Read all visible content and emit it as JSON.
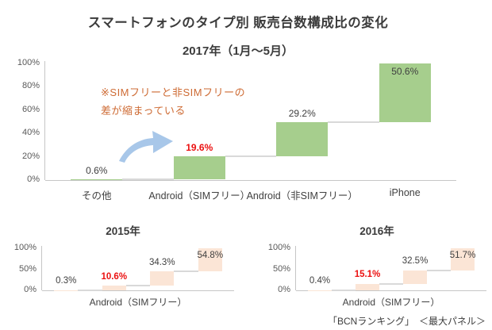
{
  "page": {
    "title": "スマートフォンのタイプ別 販売台数構成比の変化",
    "footer": "「BCNランキング」　＜最大パネル＞"
  },
  "annotation": {
    "line1": "※SIMフリーと非SIMフリーの",
    "line2": "差が縮まっている",
    "text_color": "#CE6B34",
    "arrow_color": "#A8C7E9"
  },
  "colors": {
    "bar_green": "#A6CE8D",
    "bar_peach": "#FBE5D6",
    "label_dark": "#404040",
    "label_red": "#EB1010",
    "axis_line": "#C6C6C6",
    "connector": "#D9D9D9",
    "tick_text": "#595959"
  },
  "chart_data": [
    {
      "id": "2017",
      "type": "bar",
      "subtype": "waterfall",
      "title": "2017年（1月〜5月）",
      "categories": [
        "その他",
        "Android（SIMフリー）",
        "Android（非SIMフリー）",
        "iPhone"
      ],
      "show_categories": true,
      "values": [
        0.6,
        19.6,
        29.2,
        50.6
      ],
      "bases": [
        0,
        0.6,
        20.2,
        49.4
      ],
      "data_labels": [
        "0.6%",
        "19.6%",
        "29.2%",
        "50.6%"
      ],
      "label_styles": [
        "above",
        "above-red",
        "above",
        "inside"
      ],
      "bar_color_key": "bar_green",
      "ylim": [
        0,
        100
      ],
      "yticks": [
        0,
        20,
        40,
        60,
        80,
        100
      ],
      "ytick_labels": [
        "0%",
        "20%",
        "40%",
        "60%",
        "80%",
        "100%"
      ],
      "grid": false,
      "legend": false
    },
    {
      "id": "2015",
      "type": "bar",
      "subtype": "waterfall",
      "title": "2015年",
      "show_categories": false,
      "x_axis_label": "Android（SIMフリー）",
      "values": [
        0.3,
        10.6,
        34.3,
        54.8
      ],
      "bases": [
        0,
        0.3,
        10.9,
        45.2
      ],
      "data_labels": [
        "0.3%",
        "10.6%",
        "34.3%",
        "54.8%"
      ],
      "label_styles": [
        "above",
        "above-red",
        "above",
        "inside"
      ],
      "bar_color_key": "bar_peach",
      "ylim": [
        0,
        100
      ],
      "yticks": [
        0,
        50,
        100
      ],
      "ytick_labels": [
        "0%",
        "50%",
        "100%"
      ],
      "grid": false,
      "legend": false
    },
    {
      "id": "2016",
      "type": "bar",
      "subtype": "waterfall",
      "title": "2016年",
      "show_categories": false,
      "x_axis_label": "Android（SIMフリー）",
      "values": [
        0.4,
        15.1,
        32.5,
        51.7
      ],
      "bases": [
        0,
        0.4,
        15.5,
        48.0
      ],
      "data_labels": [
        "0.4%",
        "15.1%",
        "32.5%",
        "51.7%"
      ],
      "label_styles": [
        "above",
        "above-red",
        "above",
        "inside"
      ],
      "bar_color_key": "bar_peach",
      "ylim": [
        0,
        100
      ],
      "yticks": [
        0,
        50,
        100
      ],
      "ytick_labels": [
        "0%",
        "50%",
        "100%"
      ],
      "grid": false,
      "legend": false
    }
  ]
}
